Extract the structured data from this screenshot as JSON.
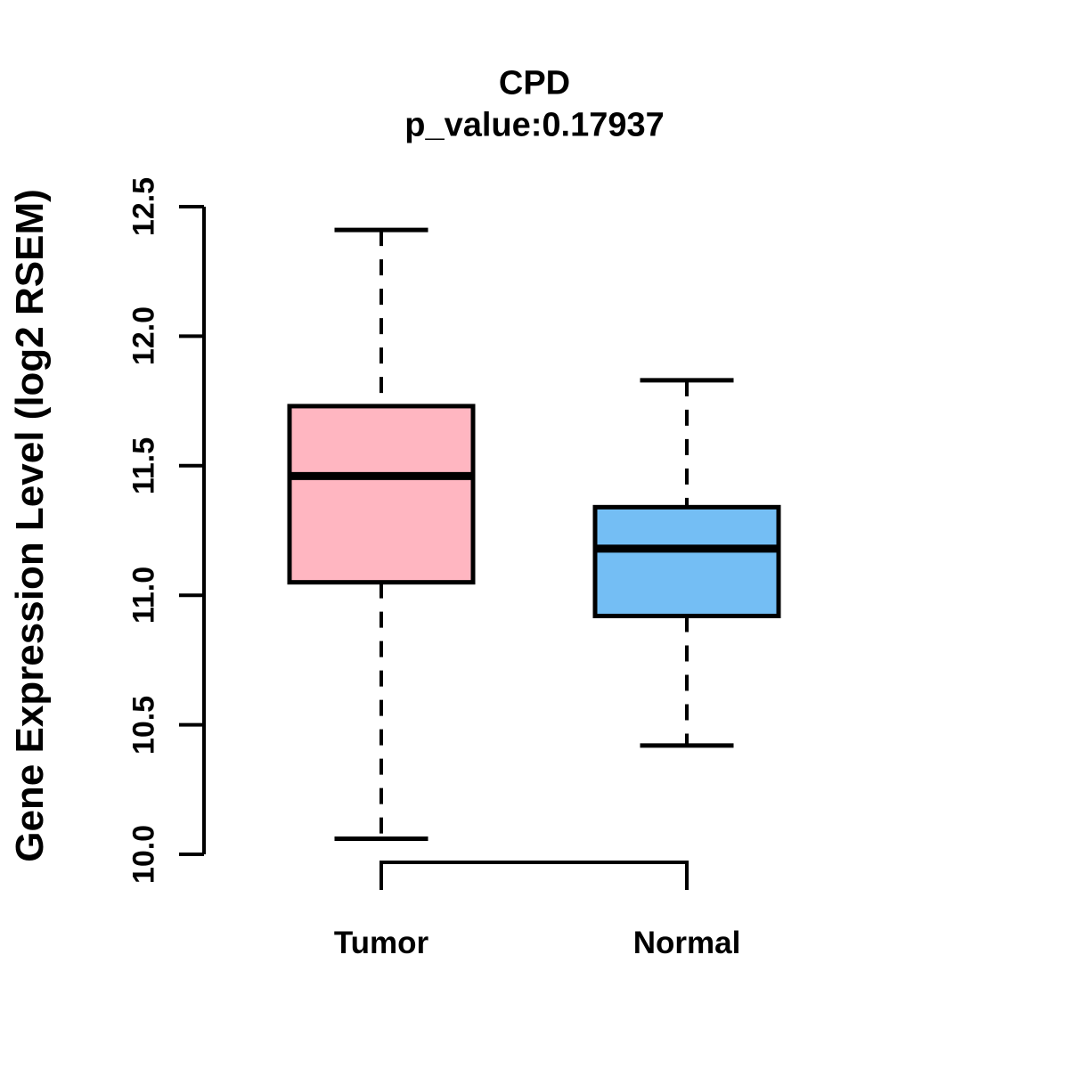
{
  "figure": {
    "background": "#FFFFFF",
    "text_color": "#000000"
  },
  "chart_data": {
    "type": "boxplot",
    "title": "CPD",
    "subtitle": "p_value:0.17937",
    "ylabel": "Gene Expression Level (log2 RSEM)",
    "xlabel": "",
    "categories": [
      "Tumor",
      "Normal"
    ],
    "ylim": [
      10.0,
      12.5
    ],
    "yticks": [
      10.0,
      10.5,
      11.0,
      11.5,
      12.0,
      12.5
    ],
    "ytick_labels": [
      "10.0",
      "10.5",
      "11.0",
      "11.5",
      "12.0",
      "12.5"
    ],
    "grid": false,
    "legend_position": "none",
    "box_border_color": "#000000",
    "median_color": "#000000",
    "whisker_style": "dashed",
    "series": [
      {
        "name": "Tumor",
        "color": "#FFB6C1",
        "whisker_low": 10.06,
        "q1": 11.05,
        "median": 11.46,
        "q3": 11.73,
        "whisker_high": 12.41
      },
      {
        "name": "Normal",
        "color": "#74BEF4",
        "whisker_low": 10.42,
        "q1": 10.92,
        "median": 11.18,
        "q3": 11.34,
        "whisker_high": 11.83
      }
    ]
  }
}
